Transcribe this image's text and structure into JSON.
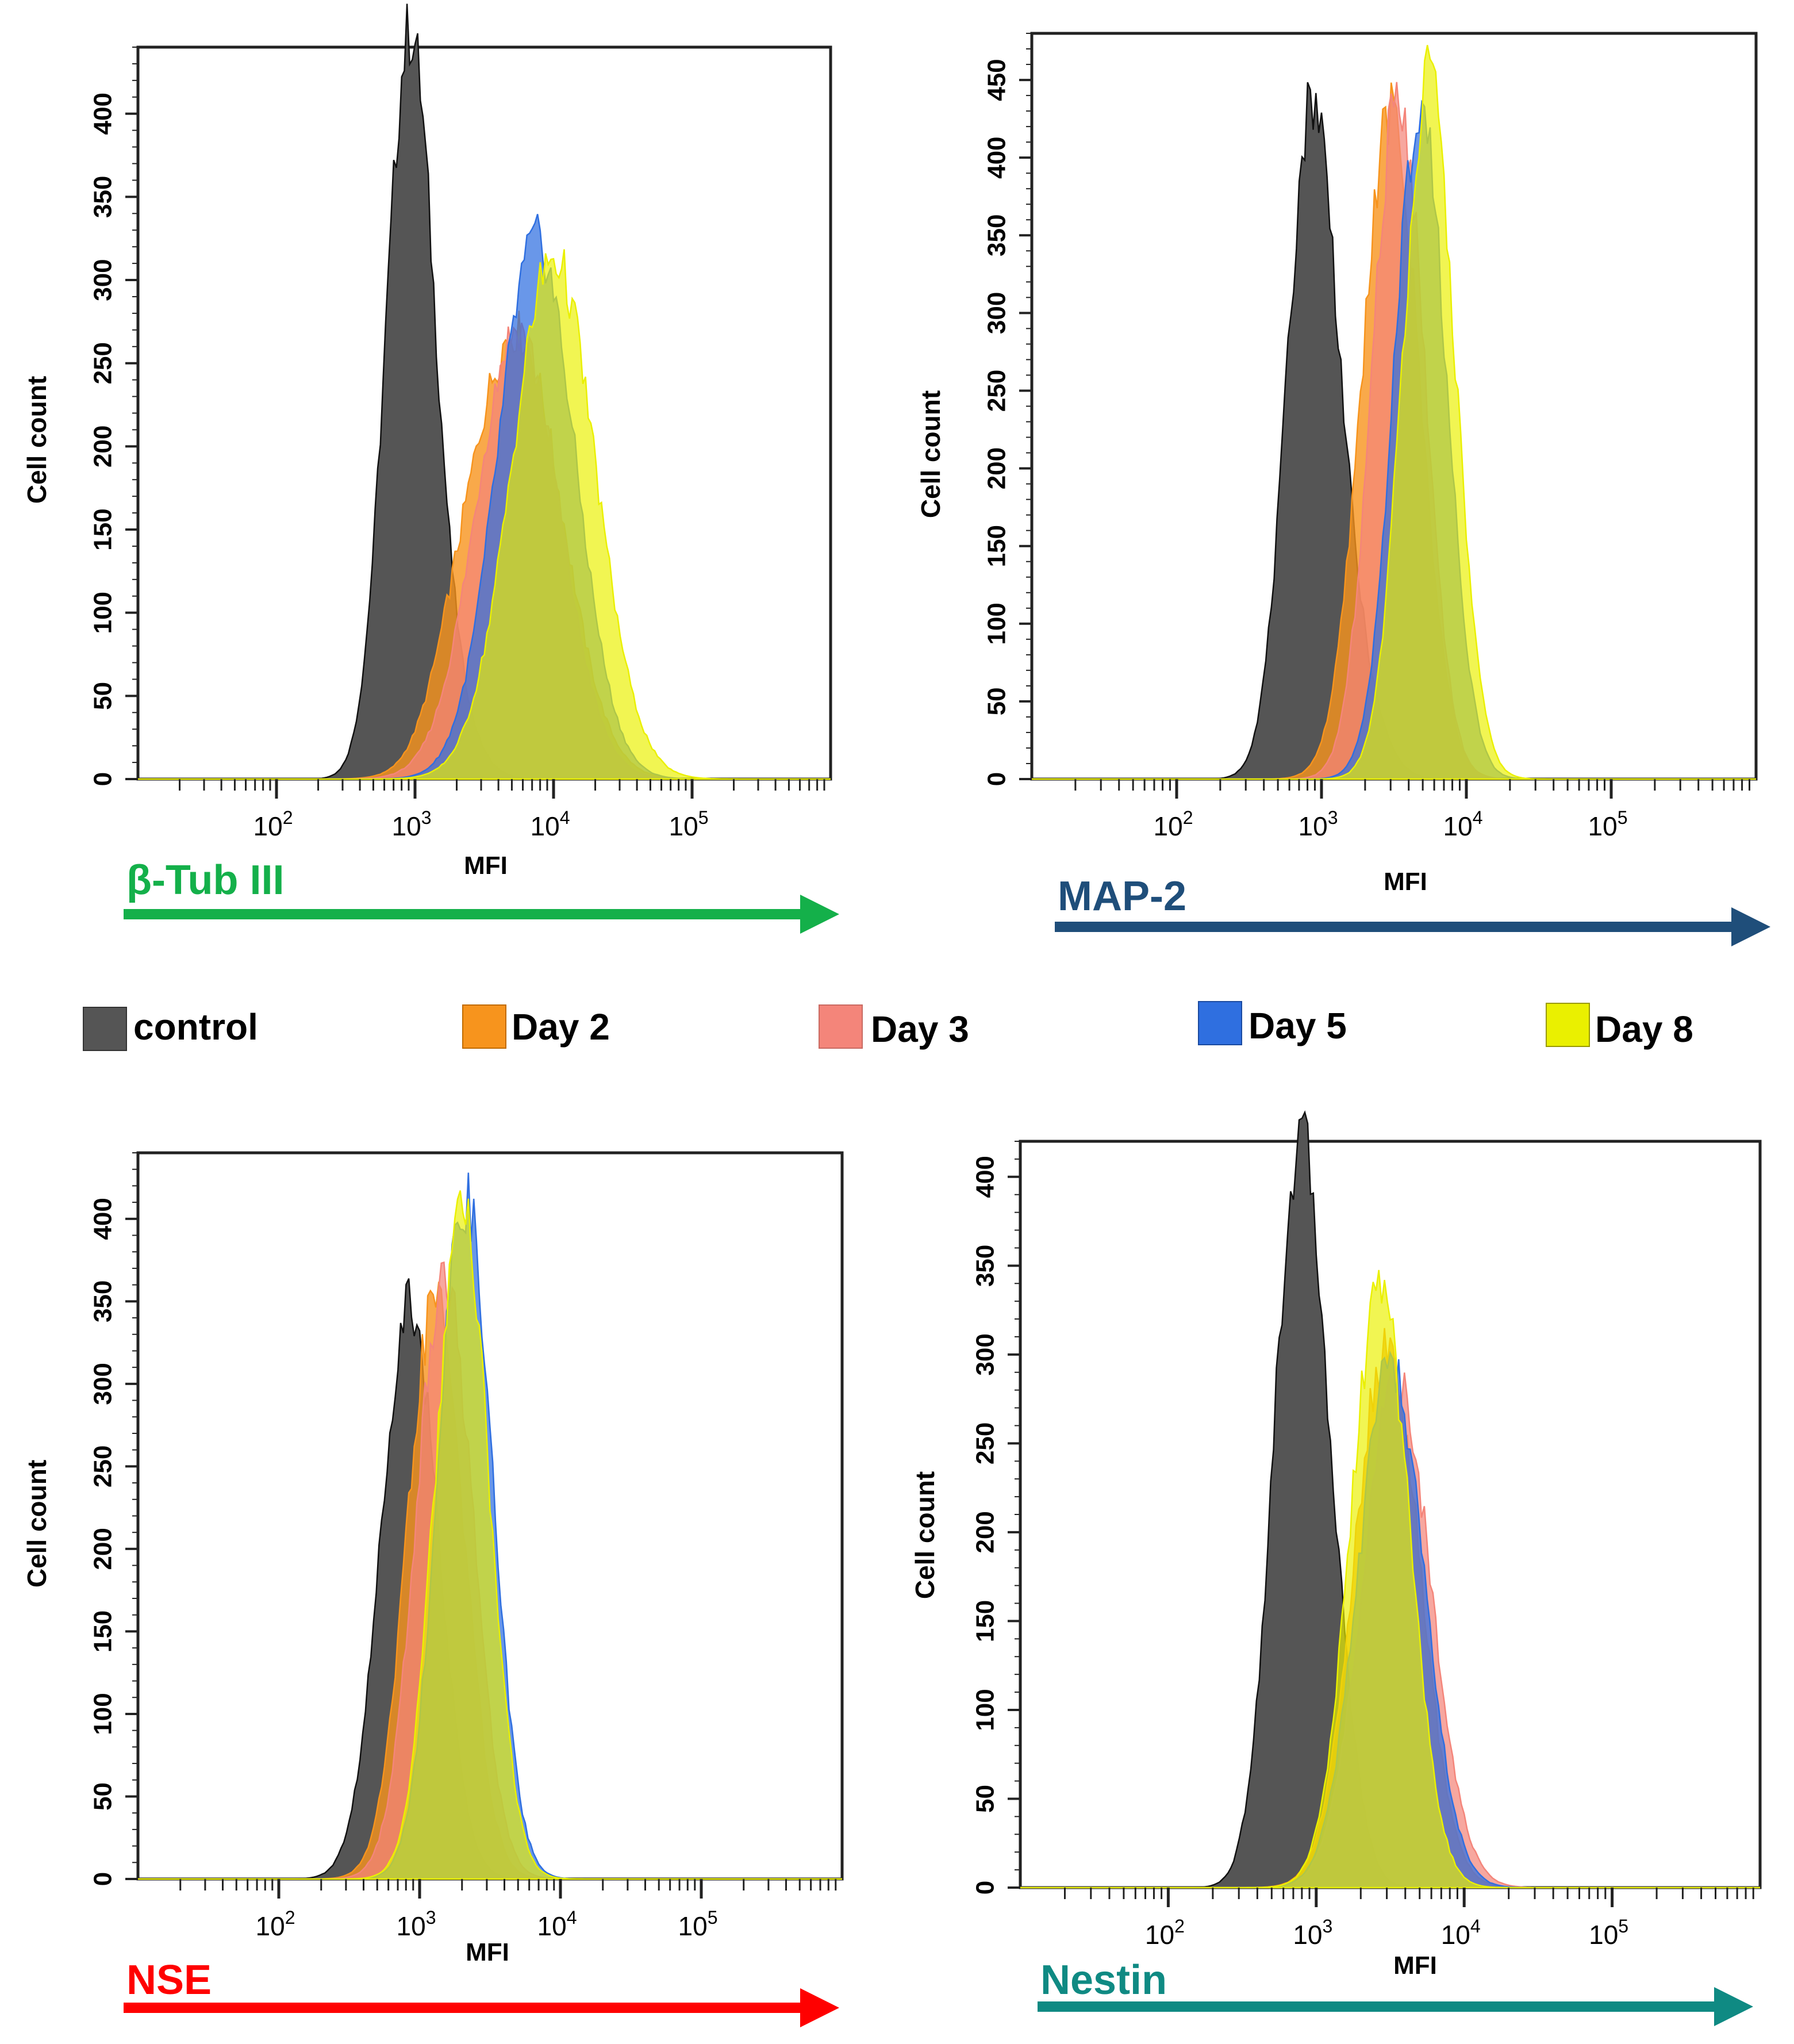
{
  "colors": {
    "control": "#555555",
    "day2": "#f7941d",
    "day3": "#f4857a",
    "day5": "#2f6fe0",
    "day8": "#eaf000",
    "btub_arrow": "#14b04a",
    "map2_arrow": "#1f4e7a",
    "nse_arrow": "#ff0000",
    "nestin_arrow": "#0f8a83"
  },
  "legend": [
    {
      "key": "control",
      "label": "control"
    },
    {
      "key": "day2",
      "label": "Day 2"
    },
    {
      "key": "day3",
      "label": "Day 3"
    },
    {
      "key": "day5",
      "label": "Day 5"
    },
    {
      "key": "day8",
      "label": "Day 8"
    }
  ],
  "chart_data": [
    {
      "type": "area",
      "marker": "β-Tub III",
      "xlabel": "MFI",
      "ylabel": "Cell count",
      "xscale": "log",
      "xlim": [
        10,
        1000000
      ],
      "ylim": [
        0,
        440
      ],
      "yticks": [
        0,
        50,
        100,
        150,
        200,
        250,
        300,
        350,
        400
      ],
      "xticks": [
        {
          "base": "10",
          "exp": "2",
          "value": 100
        },
        {
          "base": "10",
          "exp": "3",
          "value": 1000
        },
        {
          "base": "10",
          "exp": "4",
          "value": 10000
        },
        {
          "base": "10",
          "exp": "5",
          "value": 100000
        }
      ],
      "series": [
        {
          "name": "control",
          "peak_mfi": 900,
          "peak_count": 440,
          "width": 0.17,
          "shoulder": {
            "mfi": 1500,
            "count": 60,
            "width": 0.2
          }
        },
        {
          "name": "Day 2",
          "peak_mfi": 5500,
          "peak_count": 280,
          "width": 0.32,
          "shoulder": {
            "mfi": 2000,
            "count": 35,
            "width": 0.2
          }
        },
        {
          "name": "Day 3",
          "peak_mfi": 5500,
          "peak_count": 285,
          "width": 0.3
        },
        {
          "name": "Day 5",
          "peak_mfi": 7500,
          "peak_count": 340,
          "width": 0.28
        },
        {
          "name": "Day 8",
          "peak_mfi": 10000,
          "peak_count": 330,
          "width": 0.3
        }
      ]
    },
    {
      "type": "area",
      "marker": "MAP-2",
      "xlabel": "MFI",
      "ylabel": "Cell count",
      "xscale": "log",
      "xlim": [
        10,
        1000000
      ],
      "ylim": [
        0,
        480
      ],
      "yticks": [
        0,
        50,
        100,
        150,
        200,
        250,
        300,
        350,
        400,
        450
      ],
      "xticks": [
        {
          "base": "10",
          "exp": "2",
          "value": 100
        },
        {
          "base": "10",
          "exp": "3",
          "value": 1000
        },
        {
          "base": "10",
          "exp": "4",
          "value": 10000
        },
        {
          "base": "10",
          "exp": "5",
          "value": 100000
        }
      ],
      "series": [
        {
          "name": "control",
          "peak_mfi": 850,
          "peak_count": 440,
          "width": 0.17,
          "shoulder": {
            "mfi": 1600,
            "count": 70,
            "width": 0.18
          }
        },
        {
          "name": "Day 2",
          "peak_mfi": 3000,
          "peak_count": 450,
          "width": 0.2
        },
        {
          "name": "Day 3",
          "peak_mfi": 3400,
          "peak_count": 465,
          "width": 0.18
        },
        {
          "name": "Day 5",
          "peak_mfi": 4800,
          "peak_count": 455,
          "width": 0.18
        },
        {
          "name": "Day 8",
          "peak_mfi": 5500,
          "peak_count": 475,
          "width": 0.18
        }
      ]
    },
    {
      "type": "area",
      "marker": "NSE",
      "xlabel": "MFI",
      "ylabel": "Cell count",
      "xscale": "log",
      "xlim": [
        10,
        1000000
      ],
      "ylim": [
        0,
        440
      ],
      "yticks": [
        0,
        50,
        100,
        150,
        200,
        250,
        300,
        350,
        400
      ],
      "xticks": [
        {
          "base": "10",
          "exp": "2",
          "value": 100
        },
        {
          "base": "10",
          "exp": "3",
          "value": 1000
        },
        {
          "base": "10",
          "exp": "4",
          "value": 10000
        },
        {
          "base": "10",
          "exp": "5",
          "value": 100000
        }
      ],
      "series": [
        {
          "name": "control",
          "peak_mfi": 850,
          "peak_count": 370,
          "width": 0.2
        },
        {
          "name": "Day 2",
          "peak_mfi": 1300,
          "peak_count": 370,
          "width": 0.2
        },
        {
          "name": "Day 3",
          "peak_mfi": 1500,
          "peak_count": 385,
          "width": 0.2
        },
        {
          "name": "Day 5",
          "peak_mfi": 2100,
          "peak_count": 435,
          "width": 0.19
        },
        {
          "name": "Day 8",
          "peak_mfi": 2000,
          "peak_count": 425,
          "width": 0.19
        }
      ]
    },
    {
      "type": "area",
      "marker": "Nestin",
      "xlabel": "MFI",
      "ylabel": "Cell count",
      "xscale": "log",
      "xlim": [
        10,
        1000000
      ],
      "ylim": [
        0,
        420
      ],
      "yticks": [
        0,
        50,
        100,
        150,
        200,
        250,
        300,
        350,
        400
      ],
      "xticks": [
        {
          "base": "10",
          "exp": "2",
          "value": 100
        },
        {
          "base": "10",
          "exp": "3",
          "value": 1000
        },
        {
          "base": "10",
          "exp": "4",
          "value": 10000
        },
        {
          "base": "10",
          "exp": "5",
          "value": 100000
        }
      ],
      "series": [
        {
          "name": "control",
          "peak_mfi": 750,
          "peak_count": 415,
          "width": 0.17,
          "shoulder": {
            "mfi": 1300,
            "count": 90,
            "width": 0.15
          }
        },
        {
          "name": "Day 2",
          "peak_mfi": 3000,
          "peak_count": 320,
          "width": 0.22
        },
        {
          "name": "Day 3",
          "peak_mfi": 3500,
          "peak_count": 300,
          "width": 0.23
        },
        {
          "name": "Day 5",
          "peak_mfi": 3200,
          "peak_count": 310,
          "width": 0.22
        },
        {
          "name": "Day 8",
          "peak_mfi": 2700,
          "peak_count": 355,
          "width": 0.2
        }
      ]
    }
  ]
}
